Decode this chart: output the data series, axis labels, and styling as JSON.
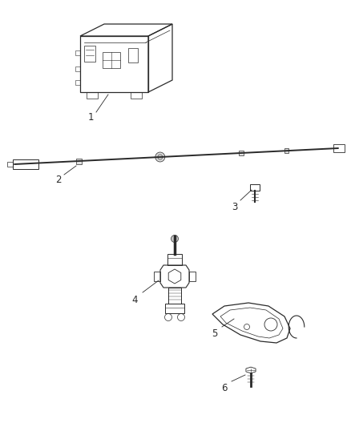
{
  "bg_color": "#ffffff",
  "line_color": "#2a2a2a",
  "label_color": "#2a2a2a",
  "fig_width": 4.38,
  "fig_height": 5.33,
  "dpi": 100
}
